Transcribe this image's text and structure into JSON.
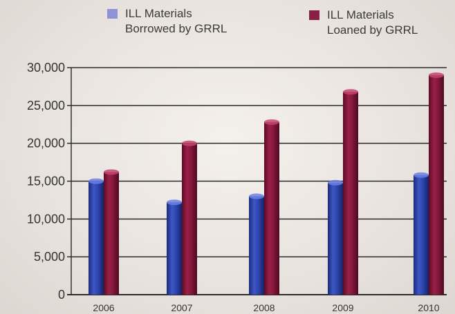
{
  "chart_data": {
    "type": "bar",
    "categories": [
      "2006",
      "2007",
      "2008",
      "2009",
      "2010"
    ],
    "series": [
      {
        "name": "ILL Materials Borrowed by GRRL",
        "name_lines": [
          "ILL Materials",
          "Borrowed by GRRL"
        ],
        "values": [
          15000,
          12200,
          13000,
          14800,
          15800
        ],
        "color": "#2a3f9e"
      },
      {
        "name": "ILL Materials Loaned by GRRL",
        "name_lines": [
          "ILL Materials",
          "Loaned by GRRL"
        ],
        "values": [
          16200,
          20000,
          22800,
          26800,
          29000
        ],
        "color": "#7d1537"
      }
    ],
    "yticks": [
      "0",
      "5,000",
      "10,000",
      "15,000",
      "20,000",
      "25,000",
      "30,000"
    ],
    "ylim": [
      0,
      30000
    ],
    "grid": true,
    "legend_position": "top"
  },
  "colors": {
    "legend_borrowed": "#8f93d6",
    "legend_loaned": "#8a1f45"
  }
}
